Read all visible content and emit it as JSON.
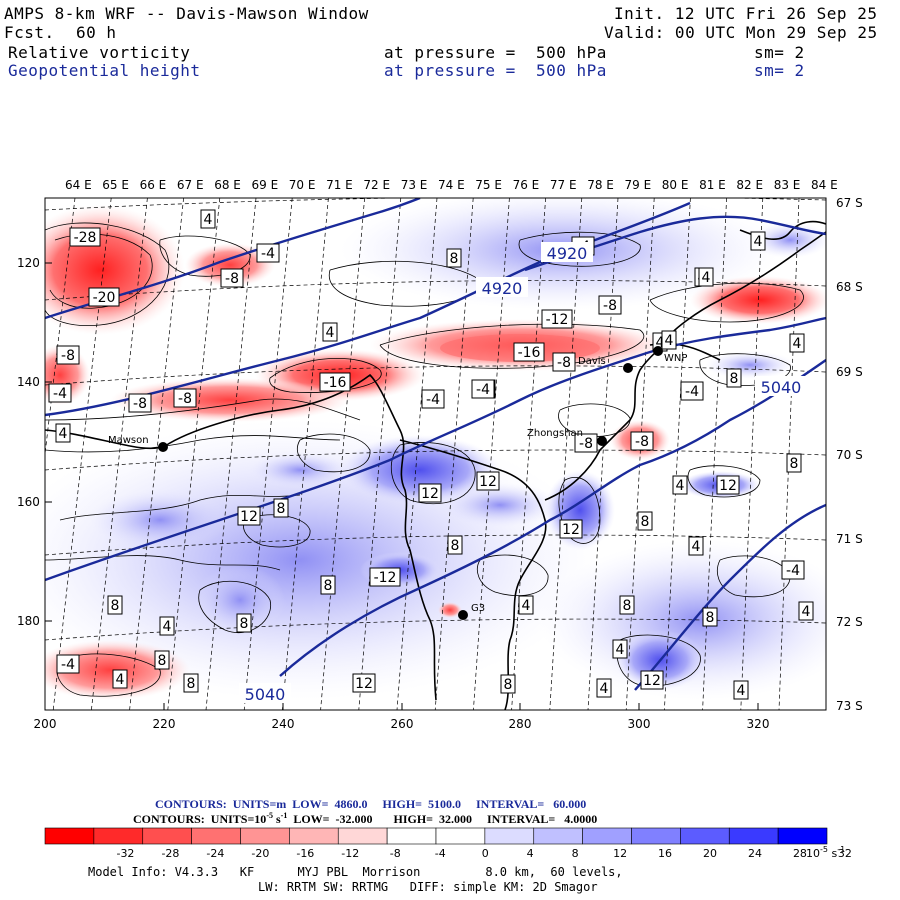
{
  "header": {
    "title": "AMPS 8-km WRF -- Davis-Mawson Window",
    "fcst_label": "Fcst.",
    "fcst_value": "60 h",
    "init": "Init. 12 UTC Fri 26 Sep 25",
    "valid": "Valid: 00 UTC Mon 29 Sep 25",
    "field1_name": "Relative vorticity",
    "field1_level": "at pressure =  500 hPa",
    "field1_sm": "sm= 2",
    "field2_name": "Geopotential height",
    "field2_level": "at pressure =  500 hPa",
    "field2_sm": "sm= 2"
  },
  "axes": {
    "top_lon_labels": [
      "64 E",
      "65 E",
      "66 E",
      "67 E",
      "68 E",
      "69 E",
      "70 E",
      "71 E",
      "72 E",
      "73 E",
      "74 E",
      "75 E",
      "76 E",
      "77 E",
      "78 E",
      "79 E",
      "80 E",
      "81 E",
      "82 E",
      "83 E",
      "84 E"
    ],
    "right_lat_labels": [
      "67 S",
      "68 S",
      "69 S",
      "70 S",
      "71 S",
      "72 S",
      "73 S"
    ],
    "left_grid_labels": [
      "120",
      "140",
      "160",
      "180"
    ],
    "bottom_grid_labels": [
      "200",
      "220",
      "240",
      "260",
      "280",
      "300",
      "320"
    ]
  },
  "stations": [
    {
      "name": "Mawson"
    },
    {
      "name": "Zhongshan"
    },
    {
      "name": "Davis"
    },
    {
      "name": "WNP"
    },
    {
      "name": "G3"
    }
  ],
  "contour_labels": {
    "vorticity": [
      "-28",
      "-20",
      "-8",
      "-4",
      "-8",
      "-8",
      "4",
      "-8",
      "-4",
      "-16",
      "-4",
      "4",
      "4",
      "8",
      "-12",
      "-16",
      "-8",
      "-8",
      "-4",
      "4",
      "-8",
      "4",
      "-4",
      "4",
      "12",
      "-4",
      "12",
      "-4",
      "4",
      "8",
      "12",
      "-8",
      "12",
      "8",
      "12",
      "8",
      "12",
      "8",
      "-12",
      "8",
      "4",
      "8",
      "8",
      "4",
      "8",
      "4",
      "8",
      "4",
      "8",
      "4",
      "12",
      "4",
      "-4",
      "-4",
      "4",
      "8",
      "8",
      "4",
      "4",
      "12",
      "8",
      "4",
      "4"
    ],
    "height": [
      "4920",
      "4920",
      "5040",
      "5040"
    ]
  },
  "footer": {
    "contours1": "CONTOURS:  UNITS=m  LOW=  4860.0     HIGH=  5100.0     INTERVAL=   60.000",
    "contours2": "CONTOURS:  UNITS=10",
    "contours2_exp": "-5",
    "contours2_rest": " s",
    "contours2_exp2": "-1",
    "contours2_tail": "  LOW=  -32.000       HIGH=  32.000     INTERVAL=   4.0000",
    "model_info": "Model Info: V4.3.3   KF      MYJ PBL  Morrison         8.0 km,  60 levels,",
    "physics": "LW: RRTM SW: RRTMG   DIFF: simple KM: 2D Smagor"
  },
  "colorbar": {
    "labels": [
      "-32",
      "-28",
      "-24",
      "-20",
      "-16",
      "-12",
      "-8",
      "-4",
      "0",
      "4",
      "8",
      "12",
      "16",
      "20",
      "24",
      "28",
      "32"
    ],
    "unit_base": "10",
    "unit_exp": "-5",
    "unit_s": " s",
    "unit_exp2": "-1",
    "colors": [
      "#ff0000",
      "#ff2a2a",
      "#ff4f4f",
      "#ff7171",
      "#ff9494",
      "#ffb6b6",
      "#ffd7d7",
      "#ffffff",
      "#ffffff",
      "#dcdcff",
      "#c0c0ff",
      "#a0a0ff",
      "#8080ff",
      "#5c5cff",
      "#3a3aff",
      "#0000ff"
    ]
  },
  "colors": {
    "height_contour": "#1a2a9a",
    "neg_fill": "#ff5a5a",
    "pos_fill": "#7878f0"
  }
}
